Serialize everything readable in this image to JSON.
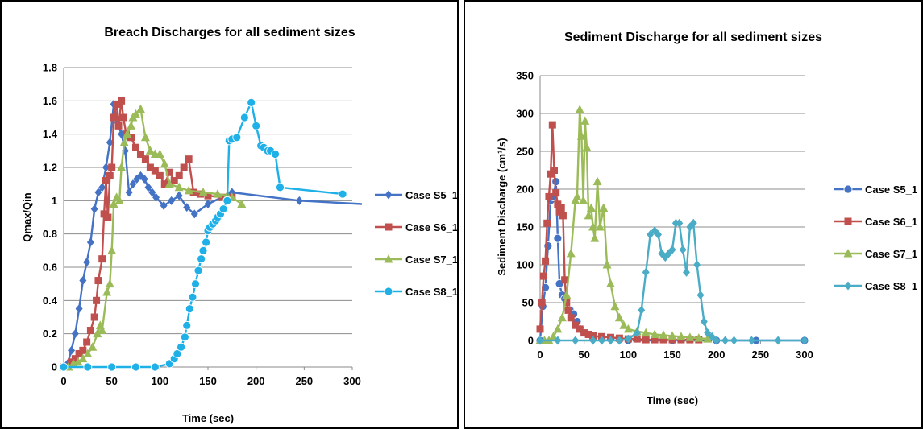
{
  "colors": {
    "s5": "#4472C4",
    "s6": "#C0504D",
    "s7": "#9BBB59",
    "s8_left": "#1FB0E8",
    "s8_right": "#4BACC6"
  },
  "chart_data": [
    {
      "type": "line",
      "title": "Breach Discharges for all sediment sizes",
      "xlabel": "Time (sec)",
      "ylabel": "Qmax/Qin",
      "xlim": [
        0,
        300
      ],
      "ylim": [
        0,
        1.8
      ],
      "xticks": [
        "0",
        "50",
        "100",
        "150",
        "200",
        "250",
        "300"
      ],
      "yticks": [
        "0",
        "0.2",
        "0.4",
        "0.6",
        "0.8",
        "1",
        "1.2",
        "1.4",
        "1.6",
        "1.8"
      ],
      "grid": "horizontal",
      "legend": "right",
      "series": [
        {
          "name": "Case S5_1",
          "color_key": "s5",
          "marker": "diamond",
          "x": [
            0,
            4,
            8,
            12,
            16,
            20,
            24,
            28,
            32,
            36,
            40,
            44,
            48,
            52,
            56,
            60,
            64,
            68,
            72,
            76,
            80,
            84,
            88,
            92,
            96,
            104,
            112,
            120,
            128,
            136,
            150,
            175,
            245,
            310
          ],
          "y": [
            0,
            0.02,
            0.1,
            0.2,
            0.35,
            0.52,
            0.63,
            0.75,
            0.95,
            1.05,
            1.08,
            1.2,
            1.35,
            1.58,
            1.47,
            1.4,
            1.3,
            1.05,
            1.1,
            1.13,
            1.15,
            1.13,
            1.08,
            1.05,
            1.02,
            0.97,
            1.0,
            1.03,
            0.96,
            0.92,
            0.98,
            1.05,
            1.0,
            0.98
          ]
        },
        {
          "name": "Case S6_1",
          "color_key": "s6",
          "marker": "square",
          "x": [
            0,
            8,
            12,
            16,
            20,
            24,
            28,
            32,
            34,
            36,
            40,
            42,
            44,
            46,
            48,
            50,
            52,
            55,
            57,
            60,
            62,
            65,
            70,
            75,
            80,
            85,
            90,
            95,
            100,
            105,
            110,
            115,
            120,
            125,
            130,
            135,
            142,
            150,
            165,
            175
          ],
          "y": [
            0,
            0.03,
            0.05,
            0.08,
            0.1,
            0.15,
            0.22,
            0.3,
            0.4,
            0.52,
            0.65,
            0.92,
            1.12,
            0.9,
            1.15,
            1.2,
            1.5,
            1.58,
            1.45,
            1.6,
            1.5,
            1.4,
            1.38,
            1.32,
            1.28,
            1.25,
            1.2,
            1.18,
            1.15,
            1.1,
            1.17,
            1.12,
            1.15,
            1.2,
            1.25,
            1.05,
            1.04,
            1.03,
            1.02,
            1.02
          ]
        },
        {
          "name": "Case S7_1",
          "color_key": "s7",
          "marker": "triangle",
          "x": [
            0,
            5,
            10,
            15,
            20,
            25,
            30,
            35,
            38,
            40,
            45,
            48,
            50,
            52,
            55,
            58,
            60,
            63,
            66,
            70,
            72,
            75,
            80,
            85,
            90,
            95,
            100,
            105,
            110,
            120,
            130,
            145,
            160,
            170,
            175,
            185
          ],
          "y": [
            0,
            0,
            0.02,
            0.03,
            0.05,
            0.08,
            0.12,
            0.2,
            0.25,
            0.22,
            0.45,
            0.5,
            0.7,
            0.98,
            1.02,
            1.0,
            1.2,
            1.35,
            1.4,
            1.45,
            1.5,
            1.52,
            1.55,
            1.38,
            1.3,
            1.28,
            1.28,
            1.22,
            1.1,
            1.08,
            1.06,
            1.05,
            1.04,
            1.03,
            1.02,
            0.98
          ]
        },
        {
          "name": "Case S8_1",
          "color_key": "s8_left",
          "marker": "circle",
          "x": [
            0,
            25,
            50,
            75,
            95,
            110,
            115,
            118,
            122,
            126,
            128,
            131,
            134,
            137,
            140,
            143,
            145,
            148,
            150,
            152,
            155,
            158,
            160,
            163,
            166,
            170,
            172,
            175,
            180,
            188,
            195,
            200,
            205,
            208,
            212,
            215,
            220,
            225,
            290
          ],
          "y": [
            0,
            0,
            0,
            0,
            0,
            0.02,
            0.05,
            0.08,
            0.12,
            0.18,
            0.25,
            0.35,
            0.42,
            0.5,
            0.58,
            0.65,
            0.7,
            0.75,
            0.82,
            0.84,
            0.86,
            0.88,
            0.9,
            0.92,
            0.95,
            1.0,
            1.36,
            1.37,
            1.38,
            1.5,
            1.59,
            1.45,
            1.33,
            1.32,
            1.3,
            1.3,
            1.28,
            1.08,
            1.04
          ]
        }
      ]
    },
    {
      "type": "line",
      "title": "Sediment Discharge for all sediment sizes",
      "xlabel": "Time (sec)",
      "ylabel": "Sediment Discharge (cm³/s)",
      "xlim": [
        0,
        300
      ],
      "ylim": [
        0,
        350
      ],
      "xticks": [
        "0",
        "50",
        "100",
        "150",
        "200",
        "250",
        "300"
      ],
      "yticks": [
        "0",
        "50",
        "100",
        "150",
        "200",
        "250",
        "300",
        "350"
      ],
      "grid": "horizontal",
      "legend": "right",
      "series": [
        {
          "name": "Case S5_1",
          "color_key": "s5",
          "marker": "circle",
          "x": [
            0,
            3,
            6,
            9,
            12,
            15,
            18,
            20,
            22,
            25,
            28,
            30,
            34,
            38,
            42,
            46,
            50,
            55,
            60,
            70,
            80,
            90,
            100,
            150,
            200,
            245,
            300
          ],
          "y": [
            0,
            45,
            70,
            125,
            185,
            190,
            210,
            135,
            75,
            60,
            55,
            50,
            40,
            35,
            25,
            15,
            10,
            8,
            5,
            3,
            2,
            1,
            0,
            0,
            0,
            0,
            0
          ]
        },
        {
          "name": "Case S6_1",
          "color_key": "s6",
          "marker": "square",
          "x": [
            0,
            2,
            4,
            6,
            8,
            10,
            12,
            14,
            16,
            18,
            20,
            22,
            24,
            26,
            28,
            30,
            32,
            35,
            40,
            45,
            50,
            55,
            60,
            70,
            80,
            90,
            100,
            110,
            120,
            130,
            140,
            150,
            160,
            170,
            180
          ],
          "y": [
            15,
            50,
            85,
            105,
            155,
            190,
            220,
            285,
            225,
            195,
            180,
            170,
            175,
            165,
            80,
            50,
            40,
            30,
            20,
            15,
            10,
            8,
            6,
            5,
            4,
            3,
            2,
            2,
            1,
            1,
            1,
            1,
            1,
            1,
            1
          ]
        },
        {
          "name": "Case S7_1",
          "color_key": "s7",
          "marker": "triangle",
          "x": [
            0,
            5,
            10,
            15,
            20,
            25,
            30,
            35,
            40,
            42,
            45,
            47,
            49,
            51,
            53,
            55,
            58,
            60,
            62,
            65,
            68,
            72,
            76,
            80,
            85,
            90,
            95,
            100,
            110,
            120,
            130,
            140,
            150,
            160,
            170,
            180,
            190
          ],
          "y": [
            0,
            0,
            0,
            5,
            15,
            30,
            60,
            115,
            185,
            190,
            305,
            270,
            185,
            290,
            255,
            165,
            175,
            150,
            135,
            210,
            150,
            175,
            100,
            75,
            45,
            30,
            20,
            15,
            12,
            10,
            8,
            7,
            6,
            5,
            4,
            3,
            2
          ]
        },
        {
          "name": "Case S8_1",
          "color_key": "s8_right",
          "marker": "diamond",
          "x": [
            0,
            20,
            40,
            60,
            70,
            80,
            90,
            100,
            110,
            115,
            120,
            125,
            130,
            134,
            138,
            142,
            146,
            150,
            154,
            158,
            162,
            166,
            170,
            174,
            178,
            182,
            186,
            190,
            195,
            200,
            210,
            220,
            240,
            270,
            300
          ],
          "y": [
            0,
            0,
            0,
            0,
            0,
            0,
            0,
            2,
            10,
            40,
            90,
            140,
            145,
            140,
            115,
            110,
            115,
            120,
            155,
            155,
            120,
            90,
            150,
            155,
            100,
            60,
            25,
            10,
            5,
            0,
            0,
            0,
            0,
            0,
            0
          ]
        }
      ]
    }
  ]
}
